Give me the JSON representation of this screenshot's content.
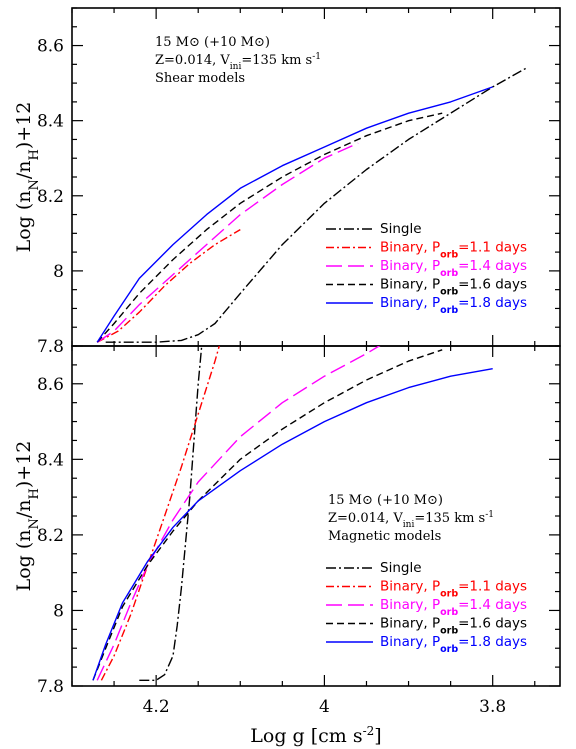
{
  "chart_data": [
    {
      "type": "line",
      "panel": "top",
      "annotation": [
        "15 M⊙ (+10 M⊙)",
        "Z=0.014, V",
        "ini",
        "=135 km s",
        "-1",
        "Shear models"
      ],
      "ylabel": "Log (n_N/n_H)+12",
      "xlim": [
        4.3,
        3.72
      ],
      "ylim": [
        7.8,
        8.7
      ],
      "x_reversed": true,
      "xticks": [
        4.2,
        4.0,
        3.8
      ],
      "yticks": [
        "7.8",
        "8",
        "8.2",
        "8.4",
        "8.6"
      ],
      "legend_placement": "lower-right",
      "series": [
        {
          "name": "Single",
          "label": "Single",
          "color": "#000000",
          "dash": "dashdot",
          "x": [
            4.26,
            4.2,
            4.17,
            4.15,
            4.13,
            4.1,
            4.05,
            4.0,
            3.95,
            3.9,
            3.85,
            3.8,
            3.76
          ],
          "y": [
            7.81,
            7.81,
            7.815,
            7.83,
            7.86,
            7.94,
            8.07,
            8.18,
            8.27,
            8.35,
            8.42,
            8.49,
            8.54
          ]
        },
        {
          "name": "Binary, Porb=1.1 days",
          "label_main": "Binary, P",
          "label_sub": "orb",
          "label_tail": "=1.1 days",
          "color": "#ff0000",
          "dash": "dashdot2",
          "x": [
            4.27,
            4.245,
            4.22,
            4.19,
            4.16,
            4.13,
            4.1
          ],
          "y": [
            7.81,
            7.84,
            7.89,
            7.96,
            8.02,
            8.07,
            8.11
          ]
        },
        {
          "name": "Binary, Porb=1.4 days",
          "label_main": "Binary, P",
          "label_sub": "orb",
          "label_tail": "=1.4 days",
          "color": "#ff00ff",
          "dash": "longdash",
          "x": [
            4.27,
            4.25,
            4.22,
            4.18,
            4.14,
            4.1,
            4.05,
            4.0,
            3.96
          ],
          "y": [
            7.81,
            7.84,
            7.91,
            7.99,
            8.07,
            8.15,
            8.23,
            8.3,
            8.34
          ]
        },
        {
          "name": "Binary, Porb=1.6 days",
          "label_main": "Binary, P",
          "label_sub": "orb",
          "label_tail": "=1.6 days",
          "color": "#000000",
          "dash": "dashed",
          "x": [
            4.27,
            4.25,
            4.22,
            4.18,
            4.14,
            4.1,
            4.05,
            4.0,
            3.95,
            3.9,
            3.86
          ],
          "y": [
            7.81,
            7.86,
            7.94,
            8.03,
            8.11,
            8.18,
            8.25,
            8.31,
            8.36,
            8.4,
            8.42
          ]
        },
        {
          "name": "Binary, Porb=1.8 days",
          "label_main": "Binary, P",
          "label_sub": "orb",
          "label_tail": "=1.8 days",
          "color": "#0000ff",
          "dash": "solid",
          "x": [
            4.27,
            4.25,
            4.22,
            4.18,
            4.14,
            4.1,
            4.05,
            4.0,
            3.95,
            3.9,
            3.85,
            3.8
          ],
          "y": [
            7.81,
            7.88,
            7.98,
            8.07,
            8.15,
            8.22,
            8.28,
            8.33,
            8.38,
            8.42,
            8.45,
            8.49
          ]
        }
      ]
    },
    {
      "type": "line",
      "panel": "bottom",
      "annotation": [
        "15 M⊙ (+10 M⊙)",
        "Z=0.014, V",
        "ini",
        "=135 km s",
        "-1",
        "Magnetic models"
      ],
      "xlabel": "Log g [cm s⁻²]",
      "ylabel": "Log (n_N/n_H)+12",
      "xlim": [
        4.3,
        3.72
      ],
      "ylim": [
        7.8,
        8.7
      ],
      "x_reversed": true,
      "xticks": [
        4.2,
        4.0,
        3.8
      ],
      "xtick_labels": [
        "4.2",
        "4",
        "3.8"
      ],
      "yticks": [
        "7.8",
        "8",
        "8.2",
        "8.4",
        "8.6"
      ],
      "legend_placement": "lower-right",
      "series": [
        {
          "name": "Single",
          "label": "Single",
          "color": "#000000",
          "dash": "dashdot",
          "x": [
            4.22,
            4.2,
            4.19,
            4.18,
            4.175,
            4.17,
            4.165,
            4.16,
            4.155,
            4.15,
            4.145
          ],
          "y": [
            7.815,
            7.815,
            7.83,
            7.88,
            7.96,
            8.06,
            8.18,
            8.3,
            8.45,
            8.6,
            8.72
          ]
        },
        {
          "name": "Binary, Porb=1.1 days",
          "label_main": "Binary, P",
          "label_sub": "orb",
          "label_tail": "=1.1 days",
          "color": "#ff0000",
          "dash": "dashdot2",
          "x": [
            4.265,
            4.25,
            4.23,
            4.21,
            4.19,
            4.17,
            4.15,
            4.13,
            4.115
          ],
          "y": [
            7.815,
            7.88,
            7.99,
            8.12,
            8.25,
            8.38,
            8.52,
            8.66,
            8.78
          ]
        },
        {
          "name": "Binary, Porb=1.4 days",
          "label_main": "Binary, P",
          "label_sub": "orb",
          "label_tail": "=1.4 days",
          "color": "#ff00ff",
          "dash": "longdash",
          "x": [
            4.27,
            4.25,
            4.23,
            4.21,
            4.18,
            4.15,
            4.1,
            4.05,
            4.0,
            3.95,
            3.92
          ],
          "y": [
            7.815,
            7.91,
            8.02,
            8.12,
            8.24,
            8.34,
            8.46,
            8.55,
            8.62,
            8.68,
            8.72
          ]
        },
        {
          "name": "Binary, Porb=1.6 days",
          "label_main": "Binary, P",
          "label_sub": "orb",
          "label_tail": "=1.6 days",
          "color": "#000000",
          "dash": "dashed",
          "x": [
            4.275,
            4.26,
            4.24,
            4.21,
            4.18,
            4.15,
            4.1,
            4.05,
            4.0,
            3.95,
            3.9,
            3.86
          ],
          "y": [
            7.815,
            7.9,
            8.01,
            8.12,
            8.21,
            8.29,
            8.4,
            8.48,
            8.55,
            8.61,
            8.66,
            8.69
          ]
        },
        {
          "name": "Binary, Porb=1.8 days",
          "label_main": "Binary, P",
          "label_sub": "orb",
          "label_tail": "=1.8 days",
          "color": "#0000ff",
          "dash": "solid",
          "x": [
            4.275,
            4.26,
            4.24,
            4.21,
            4.18,
            4.15,
            4.1,
            4.05,
            4.0,
            3.95,
            3.9,
            3.85,
            3.8
          ],
          "y": [
            7.815,
            7.91,
            8.02,
            8.13,
            8.22,
            8.29,
            8.37,
            8.44,
            8.5,
            8.55,
            8.59,
            8.62,
            8.64
          ]
        }
      ]
    }
  ],
  "x_axis_title": {
    "main": "Log g [cm s",
    "sup": "-2",
    "tail": "]"
  },
  "y_axis_title": {
    "main": "Log (n",
    "sub1": "N",
    "mid": "/n",
    "sub2": "H",
    "tail": ")+12"
  }
}
